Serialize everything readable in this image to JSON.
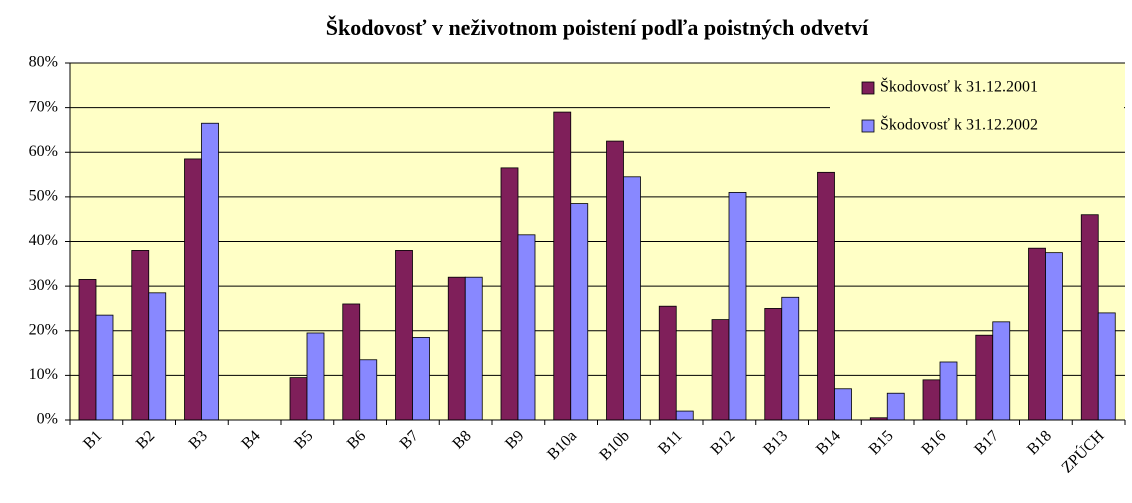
{
  "chart_data": {
    "type": "bar",
    "title": "Škodovosť v neživotnom poistení podľa poistných odvetví",
    "categories": [
      "B1",
      "B2",
      "B3",
      "B4",
      "B5",
      "B6",
      "B7",
      "B8",
      "B9",
      "B10a",
      "B10b",
      "B11",
      "B12",
      "B13",
      "B14",
      "B15",
      "B16",
      "B17",
      "B18",
      "ZPÚCH"
    ],
    "series": [
      {
        "name": "Škodovosť k 31.12.2001",
        "color": "#7f1f5a",
        "values": [
          31.5,
          38,
          58.5,
          0,
          9.5,
          26,
          38,
          32,
          56.5,
          69,
          62.5,
          25.5,
          22.5,
          25,
          55.5,
          0.5,
          9,
          19,
          38.5,
          46
        ]
      },
      {
        "name": "Škodovosť k 31.12.2002",
        "color": "#8888ff",
        "values": [
          23.5,
          28.5,
          66.5,
          0,
          19.5,
          13.5,
          18.5,
          32,
          41.5,
          48.5,
          54.5,
          2,
          51,
          27.5,
          7,
          6,
          13,
          22,
          37.5,
          24
        ]
      }
    ],
    "ylim": [
      0,
      80
    ],
    "yticks": [
      {
        "value": 0,
        "label": "0%"
      },
      {
        "value": 10,
        "label": "10%"
      },
      {
        "value": 20,
        "label": "20%"
      },
      {
        "value": 30,
        "label": "30%"
      },
      {
        "value": 40,
        "label": "40%"
      },
      {
        "value": 50,
        "label": "50%"
      },
      {
        "value": 60,
        "label": "60%"
      },
      {
        "value": 70,
        "label": "70%"
      },
      {
        "value": 80,
        "label": "80%"
      }
    ],
    "grid": true,
    "legend": "top-right"
  }
}
